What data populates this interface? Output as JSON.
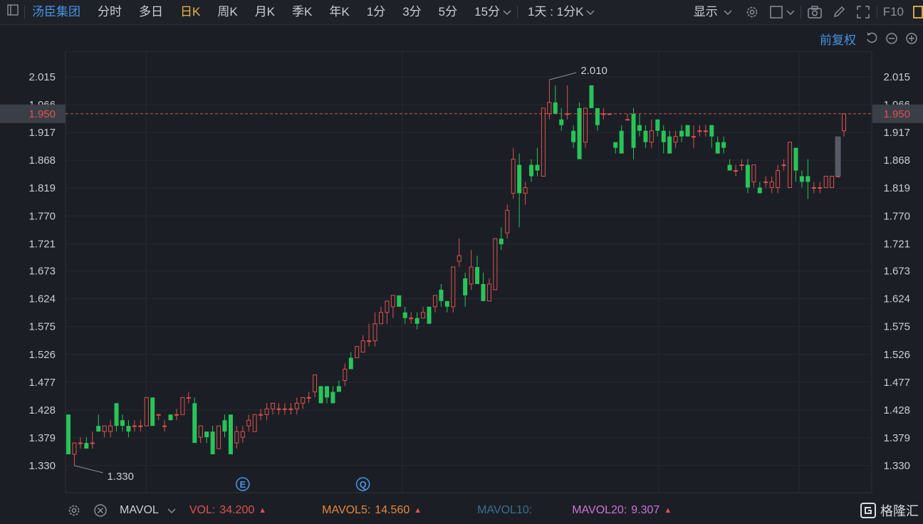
{
  "toolbar": {
    "stock_name": "汤臣集团",
    "periods": [
      "分时",
      "多日",
      "日K",
      "周K",
      "月K",
      "季K",
      "年K",
      "1分",
      "3分",
      "5分",
      "15分"
    ],
    "active_period": "日K",
    "multi_period": "1天 : 1分K",
    "display_label": "显示",
    "f10_label": "F10"
  },
  "adjust": {
    "label": "前复权"
  },
  "indicator": {
    "name": "MAVOL",
    "vol_label": "VOL:",
    "vol_value": "34.200",
    "mavol5_label": "MAVOL5:",
    "mavol5_value": "14.560",
    "mavol10_label": "MAVOL10:",
    "mavol20_label": "MAVOL20:",
    "mavol20_value": "9.307"
  },
  "watermark": "格隆汇",
  "colors": {
    "up": "#e05050",
    "down": "#28c45a",
    "price_line": "#e05050",
    "accent": "#4a90e2",
    "highlight": "#e8b54a"
  },
  "chart_data": {
    "type": "candlestick",
    "y_ticks": [
      "2.015",
      "1.966",
      "1.917",
      "1.868",
      "1.819",
      "1.770",
      "1.721",
      "1.673",
      "1.624",
      "1.575",
      "1.526",
      "1.477",
      "1.428",
      "1.379",
      "1.330"
    ],
    "ylim": [
      1.3,
      2.035
    ],
    "current_price": "1.950",
    "max_label": "2.010",
    "min_label": "1.330",
    "event_markers": [
      {
        "label": "E",
        "index": 29
      },
      {
        "label": "Q",
        "index": 49
      }
    ],
    "candles": [
      {
        "o": 1.42,
        "h": 1.42,
        "l": 1.35,
        "c": 1.35
      },
      {
        "o": 1.35,
        "h": 1.37,
        "l": 1.33,
        "c": 1.37
      },
      {
        "o": 1.37,
        "h": 1.38,
        "l": 1.36,
        "c": 1.37
      },
      {
        "o": 1.37,
        "h": 1.38,
        "l": 1.36,
        "c": 1.36
      },
      {
        "o": 1.37,
        "h": 1.39,
        "l": 1.36,
        "c": 1.37
      },
      {
        "o": 1.4,
        "h": 1.42,
        "l": 1.39,
        "c": 1.39
      },
      {
        "o": 1.39,
        "h": 1.4,
        "l": 1.38,
        "c": 1.4
      },
      {
        "o": 1.39,
        "h": 1.41,
        "l": 1.38,
        "c": 1.4
      },
      {
        "o": 1.44,
        "h": 1.44,
        "l": 1.39,
        "c": 1.4
      },
      {
        "o": 1.41,
        "h": 1.42,
        "l": 1.39,
        "c": 1.4
      },
      {
        "o": 1.4,
        "h": 1.41,
        "l": 1.38,
        "c": 1.39
      },
      {
        "o": 1.4,
        "h": 1.41,
        "l": 1.39,
        "c": 1.4
      },
      {
        "o": 1.4,
        "h": 1.41,
        "l": 1.39,
        "c": 1.4
      },
      {
        "o": 1.4,
        "h": 1.45,
        "l": 1.4,
        "c": 1.45
      },
      {
        "o": 1.45,
        "h": 1.45,
        "l": 1.4,
        "c": 1.4
      },
      {
        "o": 1.42,
        "h": 1.42,
        "l": 1.41,
        "c": 1.42
      },
      {
        "o": 1.4,
        "h": 1.41,
        "l": 1.39,
        "c": 1.4
      },
      {
        "o": 1.42,
        "h": 1.42,
        "l": 1.41,
        "c": 1.41
      },
      {
        "o": 1.42,
        "h": 1.43,
        "l": 1.41,
        "c": 1.42
      },
      {
        "o": 1.42,
        "h": 1.45,
        "l": 1.42,
        "c": 1.45
      },
      {
        "o": 1.45,
        "h": 1.46,
        "l": 1.44,
        "c": 1.45
      },
      {
        "o": 1.44,
        "h": 1.45,
        "l": 1.37,
        "c": 1.37
      },
      {
        "o": 1.38,
        "h": 1.4,
        "l": 1.37,
        "c": 1.4
      },
      {
        "o": 1.39,
        "h": 1.39,
        "l": 1.37,
        "c": 1.38
      },
      {
        "o": 1.39,
        "h": 1.4,
        "l": 1.35,
        "c": 1.35
      },
      {
        "o": 1.36,
        "h": 1.4,
        "l": 1.36,
        "c": 1.4
      },
      {
        "o": 1.41,
        "h": 1.42,
        "l": 1.38,
        "c": 1.39
      },
      {
        "o": 1.42,
        "h": 1.42,
        "l": 1.35,
        "c": 1.35
      },
      {
        "o": 1.37,
        "h": 1.4,
        "l": 1.36,
        "c": 1.39
      },
      {
        "o": 1.38,
        "h": 1.4,
        "l": 1.37,
        "c": 1.39
      },
      {
        "o": 1.4,
        "h": 1.42,
        "l": 1.39,
        "c": 1.41
      },
      {
        "o": 1.39,
        "h": 1.42,
        "l": 1.39,
        "c": 1.42
      },
      {
        "o": 1.42,
        "h": 1.43,
        "l": 1.41,
        "c": 1.42
      },
      {
        "o": 1.42,
        "h": 1.44,
        "l": 1.41,
        "c": 1.43
      },
      {
        "o": 1.43,
        "h": 1.44,
        "l": 1.42,
        "c": 1.44
      },
      {
        "o": 1.43,
        "h": 1.44,
        "l": 1.42,
        "c": 1.43
      },
      {
        "o": 1.43,
        "h": 1.44,
        "l": 1.42,
        "c": 1.43
      },
      {
        "o": 1.43,
        "h": 1.44,
        "l": 1.42,
        "c": 1.43
      },
      {
        "o": 1.43,
        "h": 1.45,
        "l": 1.42,
        "c": 1.44
      },
      {
        "o": 1.44,
        "h": 1.45,
        "l": 1.43,
        "c": 1.45
      },
      {
        "o": 1.45,
        "h": 1.46,
        "l": 1.44,
        "c": 1.45
      },
      {
        "o": 1.46,
        "h": 1.49,
        "l": 1.45,
        "c": 1.49
      },
      {
        "o": 1.47,
        "h": 1.47,
        "l": 1.44,
        "c": 1.44
      },
      {
        "o": 1.47,
        "h": 1.47,
        "l": 1.44,
        "c": 1.45
      },
      {
        "o": 1.46,
        "h": 1.47,
        "l": 1.44,
        "c": 1.44
      },
      {
        "o": 1.47,
        "h": 1.48,
        "l": 1.46,
        "c": 1.46
      },
      {
        "o": 1.48,
        "h": 1.51,
        "l": 1.47,
        "c": 1.5
      },
      {
        "o": 1.52,
        "h": 1.53,
        "l": 1.5,
        "c": 1.5
      },
      {
        "o": 1.52,
        "h": 1.54,
        "l": 1.52,
        "c": 1.54
      },
      {
        "o": 1.53,
        "h": 1.56,
        "l": 1.53,
        "c": 1.55
      },
      {
        "o": 1.55,
        "h": 1.58,
        "l": 1.54,
        "c": 1.55
      },
      {
        "o": 1.55,
        "h": 1.6,
        "l": 1.54,
        "c": 1.58
      },
      {
        "o": 1.58,
        "h": 1.61,
        "l": 1.58,
        "c": 1.6
      },
      {
        "o": 1.6,
        "h": 1.62,
        "l": 1.58,
        "c": 1.62
      },
      {
        "o": 1.61,
        "h": 1.63,
        "l": 1.59,
        "c": 1.63
      },
      {
        "o": 1.63,
        "h": 1.63,
        "l": 1.61,
        "c": 1.61
      },
      {
        "o": 1.6,
        "h": 1.61,
        "l": 1.58,
        "c": 1.59
      },
      {
        "o": 1.59,
        "h": 1.6,
        "l": 1.58,
        "c": 1.59
      },
      {
        "o": 1.59,
        "h": 1.6,
        "l": 1.57,
        "c": 1.58
      },
      {
        "o": 1.59,
        "h": 1.61,
        "l": 1.59,
        "c": 1.6
      },
      {
        "o": 1.61,
        "h": 1.61,
        "l": 1.58,
        "c": 1.58
      },
      {
        "o": 1.61,
        "h": 1.63,
        "l": 1.6,
        "c": 1.63
      },
      {
        "o": 1.64,
        "h": 1.65,
        "l": 1.61,
        "c": 1.62
      },
      {
        "o": 1.62,
        "h": 1.62,
        "l": 1.6,
        "c": 1.61
      },
      {
        "o": 1.61,
        "h": 1.68,
        "l": 1.6,
        "c": 1.68
      },
      {
        "o": 1.69,
        "h": 1.73,
        "l": 1.68,
        "c": 1.7
      },
      {
        "o": 1.66,
        "h": 1.67,
        "l": 1.61,
        "c": 1.63
      },
      {
        "o": 1.65,
        "h": 1.71,
        "l": 1.64,
        "c": 1.68
      },
      {
        "o": 1.68,
        "h": 1.7,
        "l": 1.65,
        "c": 1.65
      },
      {
        "o": 1.65,
        "h": 1.67,
        "l": 1.62,
        "c": 1.62
      },
      {
        "o": 1.62,
        "h": 1.66,
        "l": 1.62,
        "c": 1.65
      },
      {
        "o": 1.64,
        "h": 1.73,
        "l": 1.64,
        "c": 1.73
      },
      {
        "o": 1.73,
        "h": 1.75,
        "l": 1.71,
        "c": 1.72
      },
      {
        "o": 1.74,
        "h": 1.79,
        "l": 1.73,
        "c": 1.78
      },
      {
        "o": 1.81,
        "h": 1.89,
        "l": 1.8,
        "c": 1.87
      },
      {
        "o": 1.86,
        "h": 1.88,
        "l": 1.75,
        "c": 1.81
      },
      {
        "o": 1.81,
        "h": 1.83,
        "l": 1.79,
        "c": 1.82
      },
      {
        "o": 1.86,
        "h": 1.87,
        "l": 1.83,
        "c": 1.84
      },
      {
        "o": 1.86,
        "h": 1.89,
        "l": 1.84,
        "c": 1.85
      },
      {
        "o": 1.84,
        "h": 1.96,
        "l": 1.84,
        "c": 1.96
      },
      {
        "o": 1.95,
        "h": 2.01,
        "l": 1.94,
        "c": 1.97
      },
      {
        "o": 1.97,
        "h": 2.0,
        "l": 1.95,
        "c": 1.95
      },
      {
        "o": 1.94,
        "h": 1.96,
        "l": 1.92,
        "c": 1.93
      },
      {
        "o": 1.95,
        "h": 2.0,
        "l": 1.94,
        "c": 1.95
      },
      {
        "o": 1.92,
        "h": 1.93,
        "l": 1.89,
        "c": 1.9
      },
      {
        "o": 1.96,
        "h": 1.97,
        "l": 1.87,
        "c": 1.87
      },
      {
        "o": 1.9,
        "h": 1.96,
        "l": 1.89,
        "c": 1.96
      },
      {
        "o": 2.0,
        "h": 2.0,
        "l": 1.96,
        "c": 1.96
      },
      {
        "o": 1.96,
        "h": 1.96,
        "l": 1.92,
        "c": 1.93
      },
      {
        "o": 1.95,
        "h": 1.96,
        "l": 1.94,
        "c": 1.95
      },
      {
        "o": 1.95,
        "h": 1.95,
        "l": 1.95,
        "c": 1.95
      },
      {
        "o": 1.9,
        "h": 1.9,
        "l": 1.88,
        "c": 1.89
      },
      {
        "o": 1.92,
        "h": 1.93,
        "l": 1.88,
        "c": 1.88
      },
      {
        "o": 1.94,
        "h": 1.95,
        "l": 1.94,
        "c": 1.94
      },
      {
        "o": 1.95,
        "h": 1.96,
        "l": 1.87,
        "c": 1.89
      },
      {
        "o": 1.93,
        "h": 1.95,
        "l": 1.91,
        "c": 1.92
      },
      {
        "o": 1.92,
        "h": 1.93,
        "l": 1.89,
        "c": 1.9
      },
      {
        "o": 1.9,
        "h": 1.94,
        "l": 1.89,
        "c": 1.92
      },
      {
        "o": 1.94,
        "h": 1.94,
        "l": 1.91,
        "c": 1.92
      },
      {
        "o": 1.92,
        "h": 1.93,
        "l": 1.88,
        "c": 1.9
      },
      {
        "o": 1.91,
        "h": 1.92,
        "l": 1.88,
        "c": 1.88
      },
      {
        "o": 1.9,
        "h": 1.92,
        "l": 1.89,
        "c": 1.91
      },
      {
        "o": 1.92,
        "h": 1.93,
        "l": 1.9,
        "c": 1.91
      },
      {
        "o": 1.93,
        "h": 1.93,
        "l": 1.91,
        "c": 1.91
      },
      {
        "o": 1.91,
        "h": 1.93,
        "l": 1.89,
        "c": 1.91
      },
      {
        "o": 1.92,
        "h": 1.93,
        "l": 1.91,
        "c": 1.92
      },
      {
        "o": 1.92,
        "h": 1.93,
        "l": 1.91,
        "c": 1.92
      },
      {
        "o": 1.93,
        "h": 1.93,
        "l": 1.89,
        "c": 1.91
      },
      {
        "o": 1.9,
        "h": 1.91,
        "l": 1.88,
        "c": 1.88
      },
      {
        "o": 1.9,
        "h": 1.91,
        "l": 1.88,
        "c": 1.89
      },
      {
        "o": 1.86,
        "h": 1.87,
        "l": 1.85,
        "c": 1.85
      },
      {
        "o": 1.85,
        "h": 1.86,
        "l": 1.84,
        "c": 1.85
      },
      {
        "o": 1.86,
        "h": 1.87,
        "l": 1.85,
        "c": 1.86
      },
      {
        "o": 1.86,
        "h": 1.87,
        "l": 1.81,
        "c": 1.82
      },
      {
        "o": 1.83,
        "h": 1.86,
        "l": 1.82,
        "c": 1.86
      },
      {
        "o": 1.82,
        "h": 1.83,
        "l": 1.81,
        "c": 1.81
      },
      {
        "o": 1.83,
        "h": 1.84,
        "l": 1.82,
        "c": 1.83
      },
      {
        "o": 1.82,
        "h": 1.84,
        "l": 1.81,
        "c": 1.83
      },
      {
        "o": 1.82,
        "h": 1.86,
        "l": 1.81,
        "c": 1.85
      },
      {
        "o": 1.86,
        "h": 1.87,
        "l": 1.85,
        "c": 1.86
      },
      {
        "o": 1.82,
        "h": 1.9,
        "l": 1.82,
        "c": 1.9
      },
      {
        "o": 1.89,
        "h": 1.89,
        "l": 1.83,
        "c": 1.85
      },
      {
        "o": 1.84,
        "h": 1.85,
        "l": 1.82,
        "c": 1.83
      },
      {
        "o": 1.84,
        "h": 1.87,
        "l": 1.8,
        "c": 1.83
      },
      {
        "o": 1.82,
        "h": 1.83,
        "l": 1.81,
        "c": 1.82
      },
      {
        "o": 1.82,
        "h": 1.83,
        "l": 1.81,
        "c": 1.82
      },
      {
        "o": 1.82,
        "h": 1.84,
        "l": 1.82,
        "c": 1.84
      },
      {
        "o": 1.82,
        "h": 1.84,
        "l": 1.82,
        "c": 1.84
      },
      {
        "o": 1.84,
        "h": 1.91,
        "l": 1.84,
        "c": 1.84
      },
      {
        "o": 1.92,
        "h": 1.95,
        "l": 1.91,
        "c": 1.95
      }
    ]
  }
}
